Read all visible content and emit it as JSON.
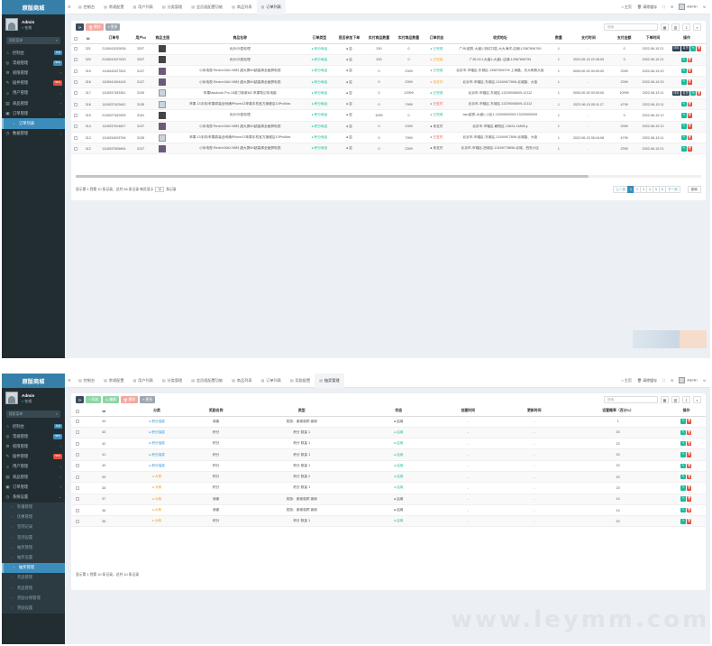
{
  "brand": "原版商城",
  "user": {
    "name": "Admin",
    "status": "在线"
  },
  "search_placeholder": "搜索菜单",
  "shot1": {
    "menu": [
      {
        "icon": "⌂",
        "label": "控制台",
        "badge": "hot",
        "badge_color": "#3c8dbc"
      },
      {
        "icon": "◎",
        "label": "常规管理",
        "badge": "new",
        "badge_color": "#3c8dbc"
      },
      {
        "icon": "⚙",
        "label": "权限管理",
        "badge": "",
        "chev": "‹"
      },
      {
        "icon": "✎",
        "label": "插件管理",
        "badge": "new",
        "badge_color": "#e74c3c"
      },
      {
        "icon": "☺",
        "label": "用户管理",
        "badge": "",
        "chev": "‹"
      },
      {
        "icon": "▤",
        "label": "商品管理",
        "badge": "",
        "chev": "‹"
      },
      {
        "icon": "▣",
        "label": "订单管理",
        "badge": "",
        "chev": "⌄"
      },
      {
        "icon": "▤",
        "label": "订单列表",
        "badge": "",
        "active": true,
        "sub": true
      },
      {
        "icon": "◷",
        "label": "数据管理",
        "badge": "",
        "chev": "‹"
      }
    ],
    "tabs": [
      {
        "label": "控制台"
      },
      {
        "label": "常规配置"
      },
      {
        "label": "用户列表"
      },
      {
        "label": "分类管理"
      },
      {
        "label": "会员组配置功能"
      },
      {
        "label": "商品列表"
      },
      {
        "label": "订单列表",
        "on": true
      }
    ],
    "top_right": {
      "frontend": "主页",
      "clear": "清除缓存",
      "admin": "Admin"
    },
    "toolbar": {
      "b1": "⟳",
      "b2": "删除",
      "b3": "更多",
      "search": "搜索"
    },
    "columns": [
      "",
      "Id",
      "订单号",
      "用户id",
      "商品主图",
      "商品名称",
      "订单类型",
      "是否参加下单",
      "实付商品数量",
      "实付商品数量",
      "订单状态",
      "收货地址",
      "数量",
      "支付时间",
      "支付金额",
      "下单时间",
      "操作"
    ],
    "rows": [
      {
        "id": "321",
        "no": "2115041029526",
        "uid": "3207",
        "thumb": "d",
        "name": "优乐/乐园伦理",
        "type": "积分商品",
        "join": "否",
        "c1": "200",
        "c2": "0",
        "status": "已完成",
        "sc": "sa",
        "addr": "广州-越秀-大道1-测试口腔-大大海洋-店铺-12587896799",
        "qty": "1",
        "pay_time": "-",
        "amount": "0",
        "time": "2022-06-15 21",
        "ops": "full"
      },
      {
        "id": "320",
        "no": "2115041027620",
        "uid": "3207",
        "thumb": "d",
        "name": "优乐/乐园伦理",
        "type": "积分商品",
        "join": "否",
        "c1": "200",
        "c2": "0",
        "status": "已完成",
        "sc": "sp",
        "addr": "广州-GCL大道1-大道1-店铺-12587896799",
        "qty": "1",
        "pay_time": "2022-06-15 22:28:09",
        "amount": "0",
        "time": "2022-06-15 21",
        "ops": "basic"
      },
      {
        "id": "319",
        "no": "1115042027533",
        "uid": "3137",
        "thumb": "p",
        "name": "小米电视 Redmi MAX 86吋 超大屏4K超高清全面屏电视",
        "type": "积分商品",
        "join": "否",
        "c1": "0",
        "c2": "2399",
        "status": "已完成",
        "sc": "sa",
        "addr": "北京市-市辖区-东城区-13587896799 上海路、光大明珠大街",
        "qty": "1",
        "pay_time": "0000-00-00 00:00:00",
        "amount": "2399",
        "time": "2022-06-15 20",
        "ops": "basic"
      },
      {
        "id": "318",
        "no": "1115041004415",
        "uid": "3137",
        "thumb": "p",
        "name": "小米电视 Redmi MAX 86吋 超大屏4K超高清全面屏电视",
        "type": "积分商品",
        "join": "否",
        "c1": "0",
        "c2": "2399",
        "status": "未支付",
        "sc": "sp",
        "addr": "北京市-市辖区-东城区-13169677898-北城路、大街",
        "qty": "1",
        "pay_time": "-",
        "amount": "2399",
        "time": "2022-06-15 20",
        "ops": "basic"
      },
      {
        "id": "317",
        "no": "1115037453361",
        "uid": "3139",
        "thumb": "l",
        "name": "苹果Macbook Pro 15英寸新款M2 苹果笔记本电脑",
        "type": "积分商品",
        "join": "否",
        "c1": "0",
        "c2": "12999",
        "status": "已完成",
        "sc": "sa",
        "addr": "北京市-市辖区-东城区-13209008009-12112",
        "qty": "1",
        "pay_time": "0000-00-00 00:00:00",
        "amount": "10999",
        "time": "2022-06-15 11",
        "ops": "full"
      },
      {
        "id": "316",
        "no": "1115037422642",
        "uid": "3135",
        "thumb": "l",
        "name": "苹果 13手机/苹果原装全网通iPhone13苹果手机官方旗舰店13ProMax",
        "type": "积分商品",
        "join": "否",
        "c1": "0",
        "c2": "7999",
        "status": "已支付",
        "sc": "sx",
        "addr": "北京市-市辖区-东城区-13209008009-12112",
        "qty": "1",
        "pay_time": "2022-06-15 05:11:17",
        "amount": "4799",
        "time": "2022-06-15 11",
        "ops": "basic"
      },
      {
        "id": "315",
        "no": "2115027452553",
        "uid": "3151",
        "thumb": "d",
        "name": "优乐/乐园伦理",
        "type": "积分商品",
        "join": "否",
        "c1": "1999",
        "c2": "0",
        "status": "已完成",
        "sc": "sa",
        "addr": "taa-越秀-大道1-小区1-13209000009-13209000009",
        "qty": "1",
        "pay_time": "-",
        "amount": "0",
        "time": "2022-06-15 12",
        "ops": "basic"
      },
      {
        "id": "314",
        "no": "1115037024627",
        "uid": "3137",
        "thumb": "p",
        "name": "小米电视 Redmi MAX 86吋 超大屏4K超高清全面屏电视",
        "type": "积分商品",
        "join": "否",
        "c1": "0",
        "c2": "2399",
        "status": "未支付",
        "sc": "sd",
        "addr": "北京市-市辖区-朝阳区-13624-11898-y",
        "qty": "1",
        "pay_time": "-",
        "amount": "2399",
        "time": "2022-06-15 12",
        "ops": "basic"
      },
      {
        "id": "313",
        "no": "1115034029706",
        "uid": "3135",
        "thumb": "l",
        "name": "苹果 13手机/苹果原装全网通iPhone13苹果手机官方旗舰店13ProMax",
        "type": "积分商品",
        "join": "否",
        "c1": "0",
        "c2": "7999",
        "status": "已支付",
        "sc": "sx",
        "addr": "北京市-市辖区-东城区-13169677898-北城路、大街",
        "qty": "1",
        "pay_time": "2022-06-15 05:16:08",
        "amount": "4799",
        "time": "2022-06-15 11",
        "ops": "basic"
      },
      {
        "id": "312",
        "no": "1115037506694",
        "uid": "3137",
        "thumb": "p",
        "name": "小米电视 Redmi MAX 86吋 超大屏4K超高清全面屏电视",
        "type": "积分商品",
        "join": "否",
        "c1": "0",
        "c2": "2399",
        "status": "未支付",
        "sc": "sd",
        "addr": "北京市-市辖区-西城区-13169778896-北城、西安小区",
        "qty": "1",
        "pay_time": "-",
        "amount": "2399",
        "time": "2022-06-15 21",
        "ops": "basic"
      }
    ],
    "op_labels": {
      "a": "详情",
      "b": "发货"
    },
    "footer": {
      "info": "显示第 1 到第 10 条记录，总共 58 条记录 每页显示",
      "per": "10",
      "per2": "条记录"
    },
    "pager": [
      "上一页",
      "1",
      "2",
      "3",
      "4",
      "5",
      "6",
      "下一页"
    ],
    "jump": "跳转"
  },
  "shot2": {
    "menu": [
      {
        "icon": "⌂",
        "label": "控制台",
        "badge": "hot",
        "badge_color": "#3c8dbc"
      },
      {
        "icon": "◎",
        "label": "常规管理",
        "badge": "new",
        "badge_color": "#3c8dbc"
      },
      {
        "icon": "⚙",
        "label": "权限管理",
        "badge": "",
        "chev": "‹"
      },
      {
        "icon": "✎",
        "label": "插件管理",
        "badge": "new",
        "badge_color": "#e74c3c"
      },
      {
        "icon": "☺",
        "label": "用户管理",
        "badge": "",
        "chev": "‹"
      },
      {
        "icon": "▤",
        "label": "商品管理",
        "badge": "",
        "chev": "‹"
      },
      {
        "icon": "▣",
        "label": "订单管理",
        "badge": "",
        "chev": "‹"
      },
      {
        "icon": "◷",
        "label": "系统设置",
        "badge": "",
        "chev": "⌄"
      },
      {
        "icon": "",
        "label": "轮播管理",
        "sub": true
      },
      {
        "icon": "",
        "label": "优惠管理",
        "sub": true
      },
      {
        "icon": "",
        "label": "签到记录",
        "sub": true
      },
      {
        "icon": "",
        "label": "签到设置",
        "sub": true
      },
      {
        "icon": "",
        "label": "抽奖管理",
        "sub": true
      },
      {
        "icon": "",
        "label": "抽奖设置",
        "sub": true
      },
      {
        "icon": "",
        "label": "抽奖管理",
        "sub": true,
        "active": true
      },
      {
        "icon": "",
        "label": "奖品管理",
        "sub": true
      },
      {
        "icon": "",
        "label": "奖品管理",
        "sub": true
      },
      {
        "icon": "",
        "label": "奖励分佣管理",
        "sub": true
      },
      {
        "icon": "",
        "label": "奖励设置",
        "sub": true
      }
    ],
    "tabs": [
      {
        "label": "控制台"
      },
      {
        "label": "常规配置"
      },
      {
        "label": "用户列表"
      },
      {
        "label": "分类管理"
      },
      {
        "label": "会员组配置功能"
      },
      {
        "label": "商品列表"
      },
      {
        "label": "订单列表"
      },
      {
        "label": "奖励配置"
      },
      {
        "label": "抽奖管理",
        "on": true
      }
    ],
    "top_right": {
      "frontend": "主页",
      "clear": "清除缓存",
      "admin": "Admin"
    },
    "toolbar": {
      "b1": "⟳",
      "b2": "添加",
      "b3": "编辑",
      "b4": "删除",
      "b5": "更多",
      "search": "搜索"
    },
    "columns": [
      "",
      "Id",
      "分类",
      "奖励名称",
      "类型",
      "状态",
      "创建时间",
      "更新时间",
      "设置概率（百分%）",
      "操作"
    ],
    "rows": [
      {
        "id": "44",
        "cat": "积分抽奖",
        "cc": "sb",
        "name": "谢谢",
        "type": "奖励：谢谢惠顾 谢谢",
        "state": "启用",
        "sc": "sd",
        "ct": "-",
        "ut": "-",
        "rate": "1"
      },
      {
        "id": "43",
        "cat": "积分抽奖",
        "cc": "sb",
        "name": "积分",
        "type": "积分 数量 1",
        "state": "启用",
        "sc": "sa",
        "ct": "-",
        "ut": "-",
        "rate": "20"
      },
      {
        "id": "42",
        "cat": "积分抽奖",
        "cc": "sb",
        "name": "积分",
        "type": "积分 数量 1",
        "state": "启用",
        "sc": "sa",
        "ct": "-",
        "ut": "-",
        "rate": "20"
      },
      {
        "id": "41",
        "cat": "积分抽奖",
        "cc": "sb",
        "name": "积分",
        "type": "积分 数量 1",
        "state": "启用",
        "sc": "sa",
        "ct": "-",
        "ut": "-",
        "rate": "20"
      },
      {
        "id": "40",
        "cat": "积分抽奖",
        "cc": "sb",
        "name": "积分",
        "type": "积分 数量 1",
        "state": "启用",
        "sc": "sa",
        "ct": "-",
        "ut": "-",
        "rate": "20"
      },
      {
        "id": "39",
        "cat": "大转",
        "cc": "sp",
        "name": "积分",
        "type": "积分 数量 2",
        "state": "启用",
        "sc": "sa",
        "ct": "-",
        "ut": "-",
        "rate": "20"
      },
      {
        "id": "38",
        "cat": "大转",
        "cc": "sp",
        "name": "积分",
        "type": "积分 数量 1",
        "state": "启用",
        "sc": "sa",
        "ct": "-",
        "ut": "-",
        "rate": "20"
      },
      {
        "id": "37",
        "cat": "大转",
        "cc": "sp",
        "name": "谢谢",
        "type": "奖励：谢谢惠顾 谢谢",
        "state": "启用",
        "sc": "sd",
        "ct": "-",
        "ut": "-",
        "rate": "10"
      },
      {
        "id": "36",
        "cat": "大转",
        "cc": "sp",
        "name": "谢谢",
        "type": "奖励：谢谢惠顾 谢谢",
        "state": "启用",
        "sc": "sd",
        "ct": "-",
        "ut": "-",
        "rate": "10"
      },
      {
        "id": "35",
        "cat": "大转",
        "cc": "sp",
        "name": "积分",
        "type": "积分 数量 1",
        "state": "启用",
        "sc": "sa",
        "ct": "-",
        "ut": "-",
        "rate": "20"
      }
    ],
    "footer": {
      "info": "显示第 1 到第 10 条记录，总共 10 条记录"
    }
  },
  "watermark": "www.leymm.com"
}
